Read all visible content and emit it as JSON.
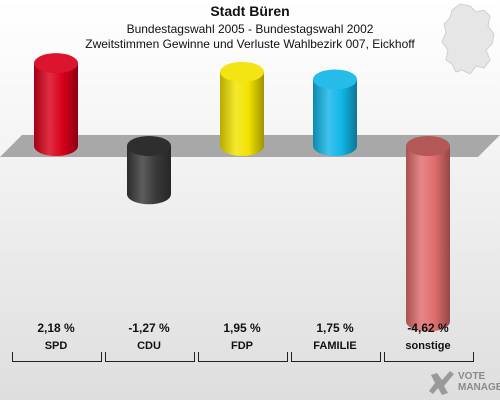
{
  "header": {
    "title": "Stadt Büren",
    "subtitle": "Bundestagswahl 2005 - Bundestagswahl 2002",
    "description": "Zweitstimmen Gewinne und Verluste Wahlbezirk 007, Eickhoff"
  },
  "chart_data": {
    "type": "bar",
    "title": "Stadt Büren",
    "categories": [
      "SPD",
      "CDU",
      "FDP",
      "FAMILIE",
      "sonstige"
    ],
    "values": [
      2.18,
      -1.27,
      1.95,
      1.75,
      -4.62
    ],
    "value_labels": [
      "2,18 %",
      "-1,27 %",
      "1,95 %",
      "1,75 %",
      "-4,62 %"
    ],
    "colors": [
      "#d9001b",
      "#3a3a3a",
      "#f2e300",
      "#12b6e8",
      "#e06d6d"
    ],
    "unit": "%",
    "grid": false,
    "legend": "none"
  },
  "logo": {
    "line1": "VOTE",
    "line2": "MANAGER"
  },
  "colors": {
    "baseline_plane": "#a8a8a8"
  }
}
